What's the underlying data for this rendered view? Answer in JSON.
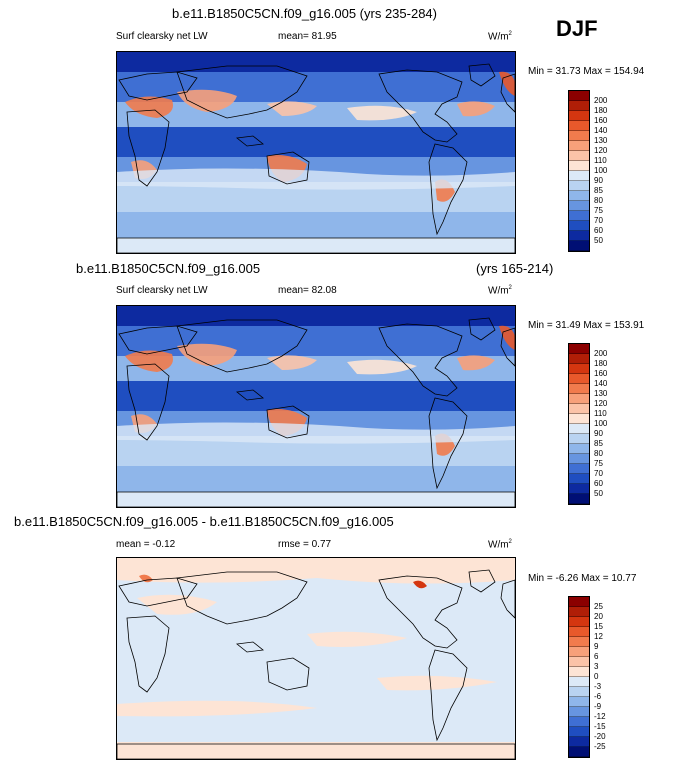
{
  "season": "DJF",
  "panel1": {
    "title": "b.e11.B1850C5CN.f09_g16.005 (yrs 235-284)",
    "var": "Surf clearsky net LW",
    "mean": "mean=  81.95",
    "units": "W/m",
    "units_exp": "2",
    "minmax": "Min = 31.73 Max = 154.94"
  },
  "panel2": {
    "title": "b.e11.B1850C5CN.f09_g16.005",
    "years": "(yrs 165-214)",
    "var": "Surf clearsky net LW",
    "mean": "mean=  82.08",
    "units": "W/m",
    "units_exp": "2",
    "minmax": "Min = 31.49 Max = 153.91"
  },
  "panel3": {
    "title": "b.e11.B1850C5CN.f09_g16.005 - b.e11.B1850C5CN.f09_g16.005",
    "mean": "mean =  -0.12",
    "rmse": "rmse =   0.77",
    "units": "W/m",
    "units_exp": "2",
    "minmax": "Min = -6.26 Max = 10.77"
  },
  "chart_data": [
    {
      "type": "heatmap",
      "title": "b.e11.B1850C5CN.f09_g16.005 (yrs 235-284)",
      "variable": "Surf clearsky net LW",
      "units": "W/m2",
      "mean": 81.95,
      "min": 31.73,
      "max": 154.94,
      "colorbar_levels": [
        "200",
        "180",
        "160",
        "140",
        "130",
        "120",
        "110",
        "100",
        "90",
        "85",
        "80",
        "75",
        "70",
        "60",
        "50"
      ],
      "colorbar_colors": [
        "#8b0000",
        "#b01e07",
        "#d43610",
        "#e8592b",
        "#f17b4d",
        "#f7a07a",
        "#fbc3a8",
        "#fde4d5",
        "#dce9f7",
        "#b9d3f1",
        "#8fb6ea",
        "#6795e0",
        "#3f6fd3",
        "#1f4ec0",
        "#0d2aa0",
        "#000f74"
      ]
    },
    {
      "type": "heatmap",
      "title": "b.e11.B1850C5CN.f09_g16.005 (yrs 165-214)",
      "variable": "Surf clearsky net LW",
      "units": "W/m2",
      "mean": 82.08,
      "min": 31.49,
      "max": 153.91,
      "colorbar_levels": [
        "200",
        "180",
        "160",
        "140",
        "130",
        "120",
        "110",
        "100",
        "90",
        "85",
        "80",
        "75",
        "70",
        "60",
        "50"
      ],
      "colorbar_colors": [
        "#8b0000",
        "#b01e07",
        "#d43610",
        "#e8592b",
        "#f17b4d",
        "#f7a07a",
        "#fbc3a8",
        "#fde4d5",
        "#dce9f7",
        "#b9d3f1",
        "#8fb6ea",
        "#6795e0",
        "#3f6fd3",
        "#1f4ec0",
        "#0d2aa0",
        "#000f74"
      ]
    },
    {
      "type": "heatmap",
      "title": "b.e11.B1850C5CN.f09_g16.005 - b.e11.B1850C5CN.f09_g16.005",
      "units": "W/m2",
      "mean": -0.12,
      "rmse": 0.77,
      "min": -6.26,
      "max": 10.77,
      "colorbar_levels": [
        "25",
        "20",
        "15",
        "12",
        "9",
        "6",
        "3",
        "0",
        "-3",
        "-6",
        "-9",
        "-12",
        "-15",
        "-20",
        "-25"
      ],
      "colorbar_colors": [
        "#8b0000",
        "#b01e07",
        "#d43610",
        "#e8592b",
        "#f17b4d",
        "#f7a07a",
        "#fbc3a8",
        "#fde4d5",
        "#dce9f7",
        "#b9d3f1",
        "#8fb6ea",
        "#6795e0",
        "#3f6fd3",
        "#1f4ec0",
        "#0d2aa0",
        "#000f74"
      ]
    }
  ]
}
